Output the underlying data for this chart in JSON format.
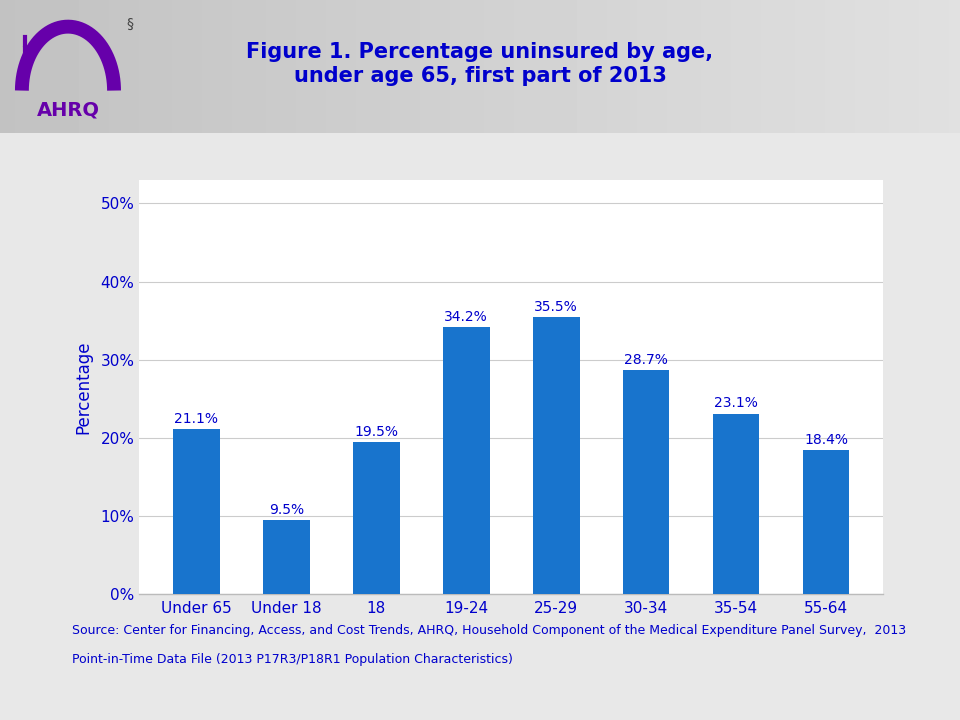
{
  "title_line1": "Figure 1. Percentage uninsured by age,",
  "title_line2": "under age 65, first part of 2013",
  "title_color": "#0000CC",
  "title_fontsize": 15,
  "categories": [
    "Under 65",
    "Under 18",
    "18",
    "19-24",
    "25-29",
    "30-34",
    "35-54",
    "55-64"
  ],
  "values": [
    21.1,
    9.5,
    19.5,
    34.2,
    35.5,
    28.7,
    23.1,
    18.4
  ],
  "labels": [
    "21.1%",
    "9.5%",
    "19.5%",
    "34.2%",
    "35.5%",
    "28.7%",
    "23.1%",
    "18.4%"
  ],
  "bar_color": "#1874CD",
  "ylabel": "Percentage",
  "ylabel_color": "#0000CC",
  "ylabel_fontsize": 12,
  "yticks": [
    0,
    10,
    20,
    30,
    40,
    50
  ],
  "ytick_labels": [
    "0%",
    "10%",
    "20%",
    "30%",
    "40%",
    "50%"
  ],
  "ylim": [
    0,
    53
  ],
  "tick_color": "#0000CC",
  "tick_fontsize": 11,
  "label_fontsize": 10,
  "label_color": "#0000CC",
  "source_line1": "Source: Center for Financing, Access, and Cost Trends, AHRQ, Household Component of the Medical Expenditure Panel Survey,  2013",
  "source_line2": "Point-in-Time Data File (2013 P17R3/P18R1 Population Characteristics)",
  "source_color": "#0000CC",
  "source_fontsize": 9,
  "separator_color": "#AAAAAA",
  "header_bg_start": "#C8C8C8",
  "header_bg_end": "#E0E0E0",
  "body_bg": "#E8E8E8",
  "plot_bg": "#FFFFFF"
}
